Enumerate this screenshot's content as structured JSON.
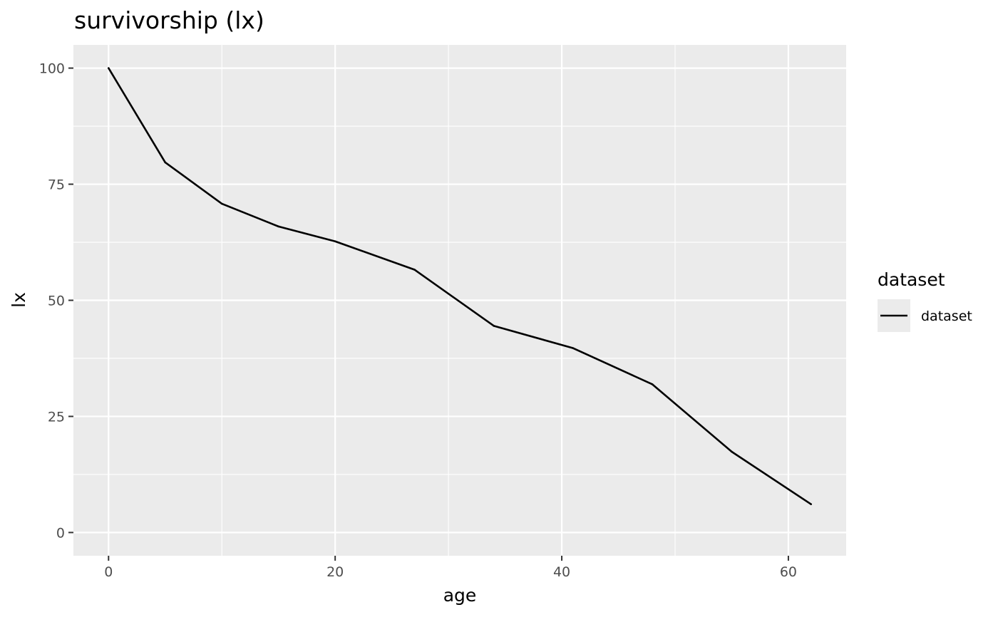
{
  "chart_data": {
    "type": "line",
    "title": "survivorship (lx)",
    "xlabel": "age",
    "ylabel": "lx",
    "xlim": [
      -3.1,
      65.1
    ],
    "ylim": [
      -5,
      105
    ],
    "x_ticks": [
      0,
      20,
      40,
      60
    ],
    "x_tick_labels": [
      "0",
      "20",
      "40",
      "60"
    ],
    "y_ticks": [
      0,
      25,
      50,
      75,
      100
    ],
    "y_tick_labels": [
      "0",
      "25",
      "50",
      "75",
      "100"
    ],
    "x_minor_ticks": [
      10,
      30,
      50
    ],
    "y_minor_ticks": [
      12.5,
      37.5,
      62.5,
      87.5
    ],
    "grid": true,
    "legend_position": "right",
    "legend": {
      "title": "dataset",
      "entries": [
        {
          "label": "dataset",
          "color": "#000000"
        }
      ]
    },
    "series": [
      {
        "name": "dataset",
        "color": "#000000",
        "x": [
          0,
          5,
          10,
          15,
          20,
          27,
          34,
          41,
          48,
          55,
          62
        ],
        "y": [
          100,
          79.7,
          70.8,
          65.9,
          62.7,
          56.6,
          44.5,
          39.7,
          31.9,
          17.4,
          6.1
        ]
      }
    ]
  },
  "colors": {
    "panel_background": "#ebebeb",
    "grid_line": "#ffffff",
    "line": "#000000"
  }
}
